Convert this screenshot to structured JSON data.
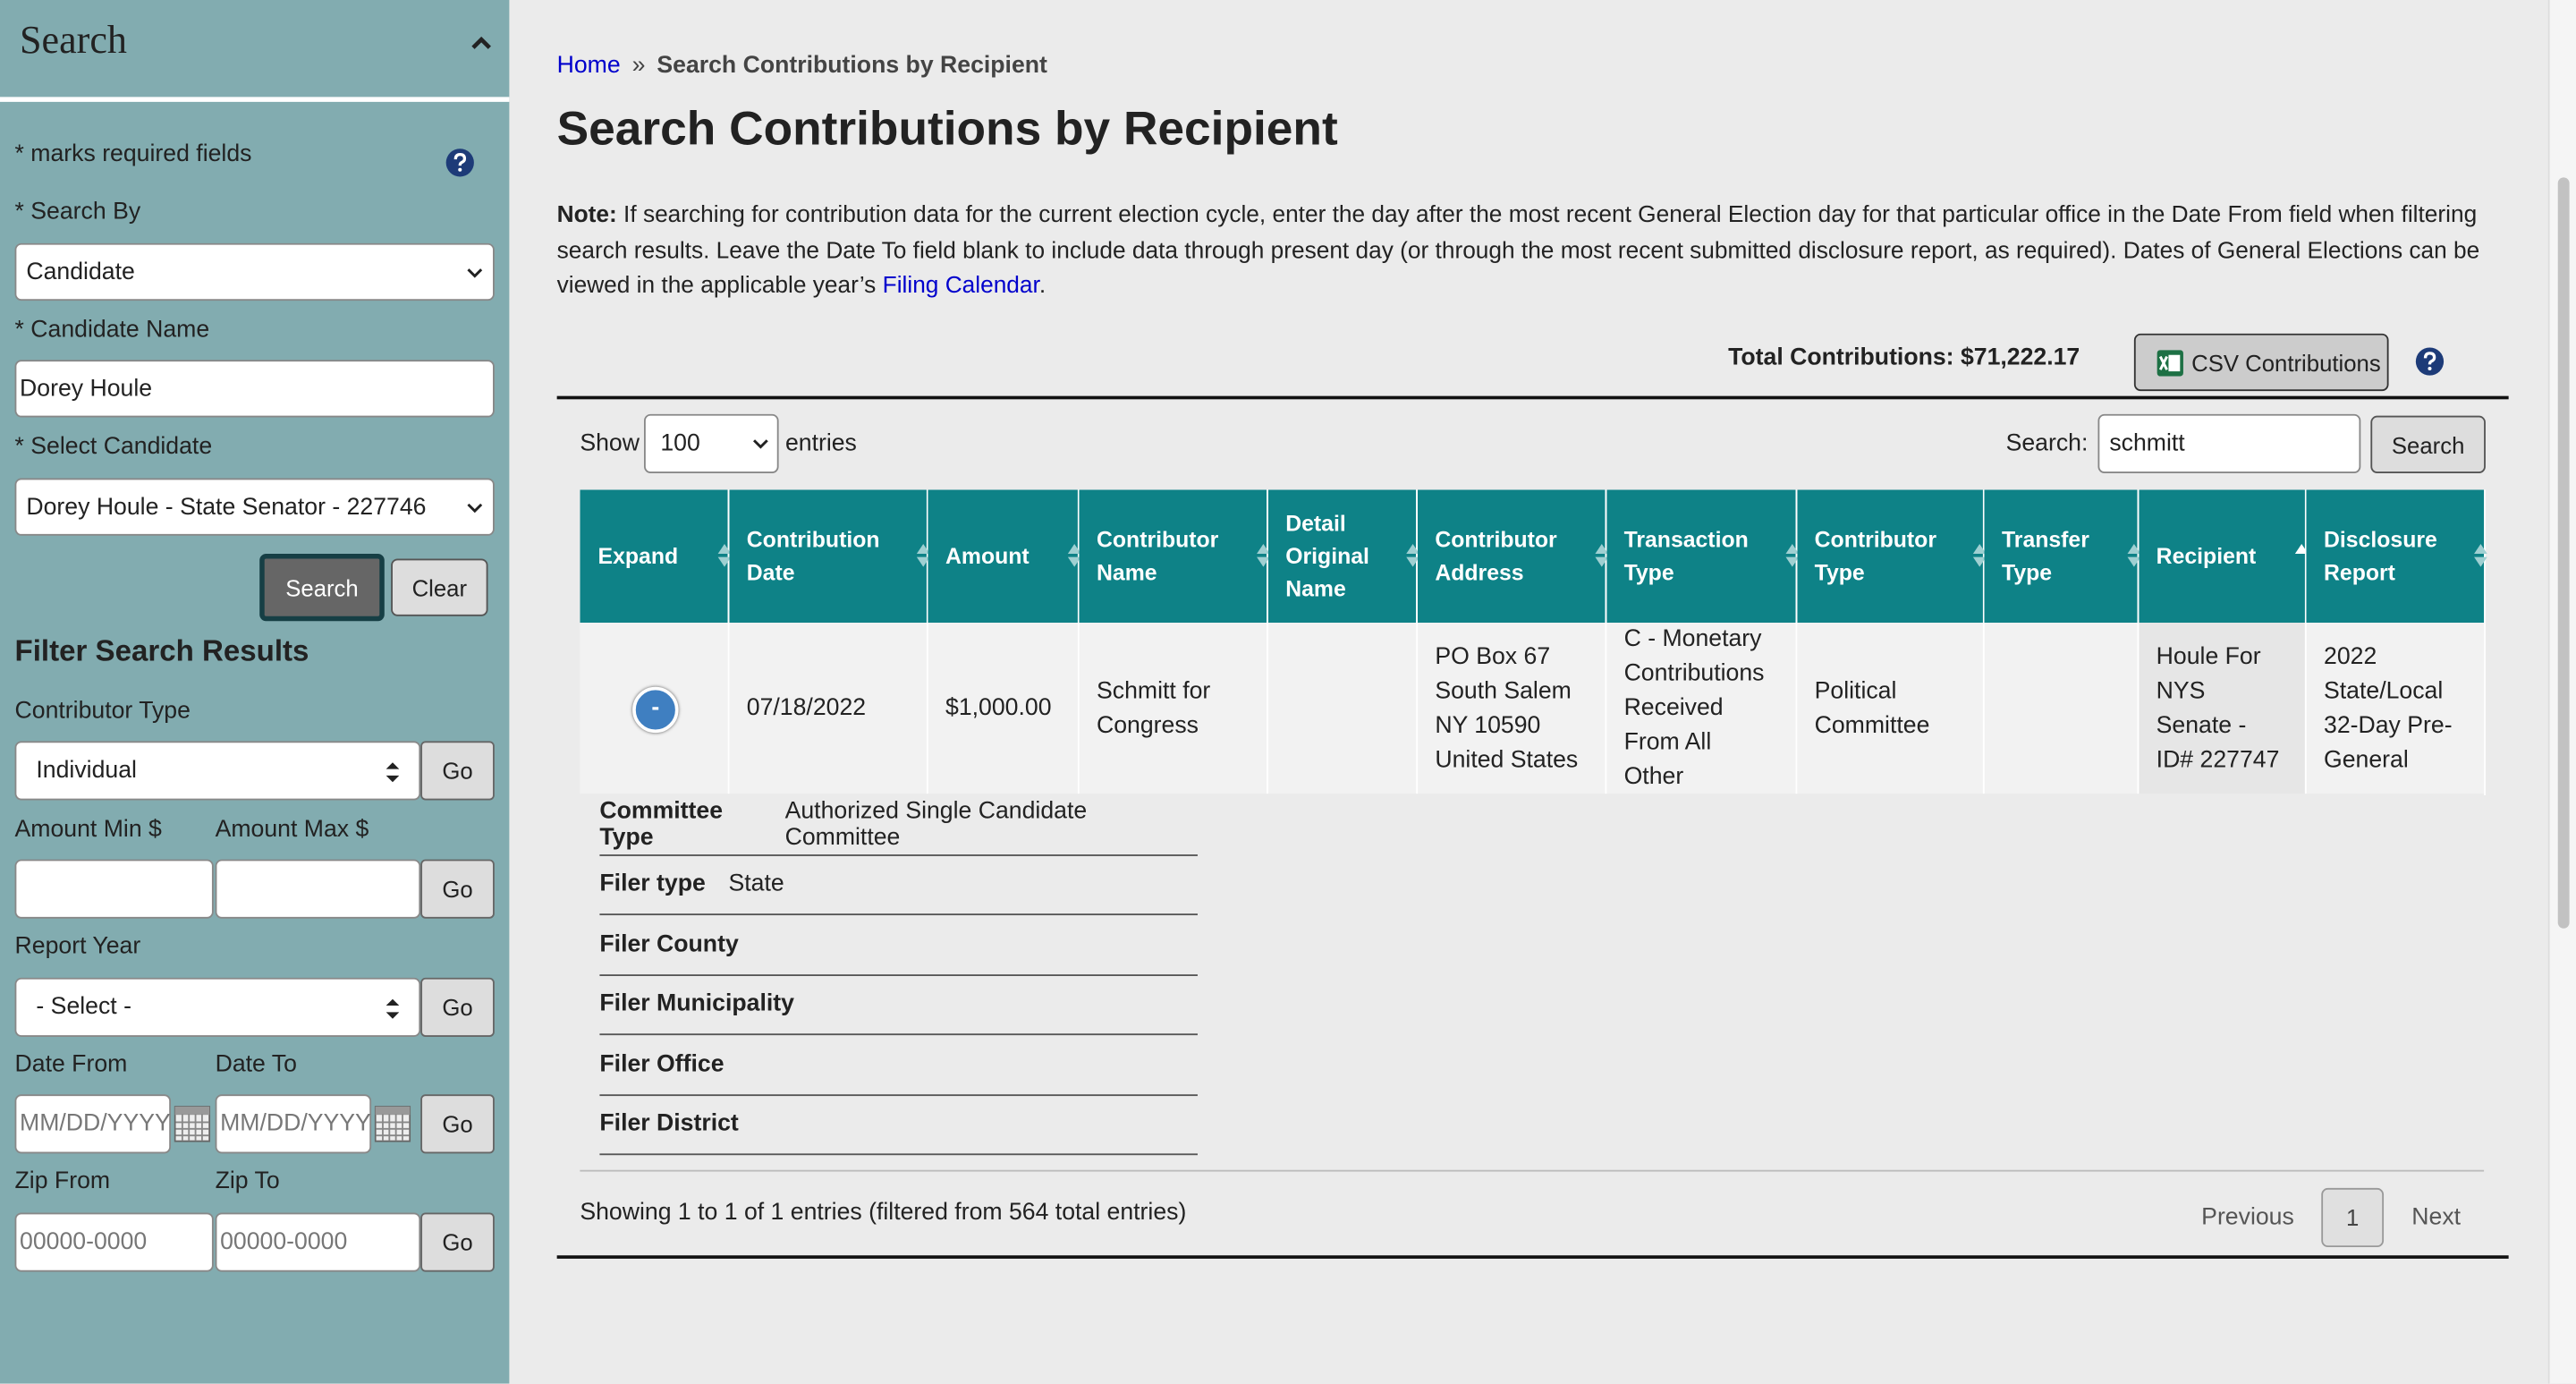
{
  "sidebar": {
    "title": "Search",
    "required_note": "* marks required fields",
    "search_by_label": "* Search By",
    "search_by_value": "Candidate",
    "candidate_name_label": "* Candidate Name",
    "candidate_name_value": "Dorey Houle",
    "select_candidate_label": "* Select Candidate",
    "select_candidate_value": "Dorey Houle - State Senator - 227746",
    "search_button": "Search",
    "clear_button": "Clear",
    "filter_title": "Filter Search Results",
    "contributor_type_label": "Contributor Type",
    "contributor_type_value": "Individual",
    "go": "Go",
    "amount_min_label": "Amount Min $",
    "amount_max_label": "Amount Max $",
    "report_year_label": "Report Year",
    "report_year_value": "- Select -",
    "date_from_label": "Date From",
    "date_to_label": "Date To",
    "date_placeholder": "MM/DD/YYYY",
    "zip_from_label": "Zip From",
    "zip_to_label": "Zip To",
    "zip_placeholder": "00000-0000"
  },
  "breadcrumb": {
    "home": "Home",
    "separator": "»",
    "current": "Search Contributions by Recipient"
  },
  "page_title": "Search Contributions by Recipient",
  "note": {
    "label": "Note:",
    "text": "If searching for contribution data for the current election cycle, enter the day after the most recent General Election day for that particular office in the Date From field when filtering search results. Leave the Date To field blank to include data through present day (or through the most recent submitted disclosure report, as required). Dates of General Elections can be viewed in the applicable year’s",
    "link": "Filing Calendar",
    "end": "."
  },
  "total": "Total Contributions: $71,222.17",
  "csv_button": "CSV Contributions",
  "table": {
    "show_label": "Show",
    "page_length": "100",
    "entries_label": "entries",
    "search_label": "Search:",
    "search_value": "schmitt",
    "search_button": "Search",
    "columns": [
      "Expand",
      "Contribution Date",
      "Amount",
      "Contributor Name",
      "Detail Original Name",
      "Contributor Address",
      "Transaction Type",
      "Contributor Type",
      "Transfer Type",
      "Recipient",
      "Disclosure Report"
    ],
    "rows": [
      [
        "-",
        "07/18/2022",
        "$1,000.00",
        "Schmitt for Congress",
        null,
        "PO Box 67 South Salem NY 10590 United States",
        "C - Monetary Contributions Received From All Other",
        "Political Committee",
        null,
        "Houle For NYS Senate - ID# 227747",
        "2022 State/Local 32-Day Pre-General"
      ]
    ],
    "detail": [
      {
        "label": "Committee Type",
        "value": "Authorized Single Candidate Committee"
      },
      {
        "label": "Filer type",
        "value": "State"
      },
      {
        "label": "Filer County",
        "value": null
      },
      {
        "label": "Filer Municipality",
        "value": null
      },
      {
        "label": "Filer Office",
        "value": null
      },
      {
        "label": "Filer District",
        "value": null
      }
    ],
    "info": "Showing 1 to 1 of 1 entries (filtered from 564 total entries)",
    "previous": "Previous",
    "page": "1",
    "next": "Next"
  }
}
